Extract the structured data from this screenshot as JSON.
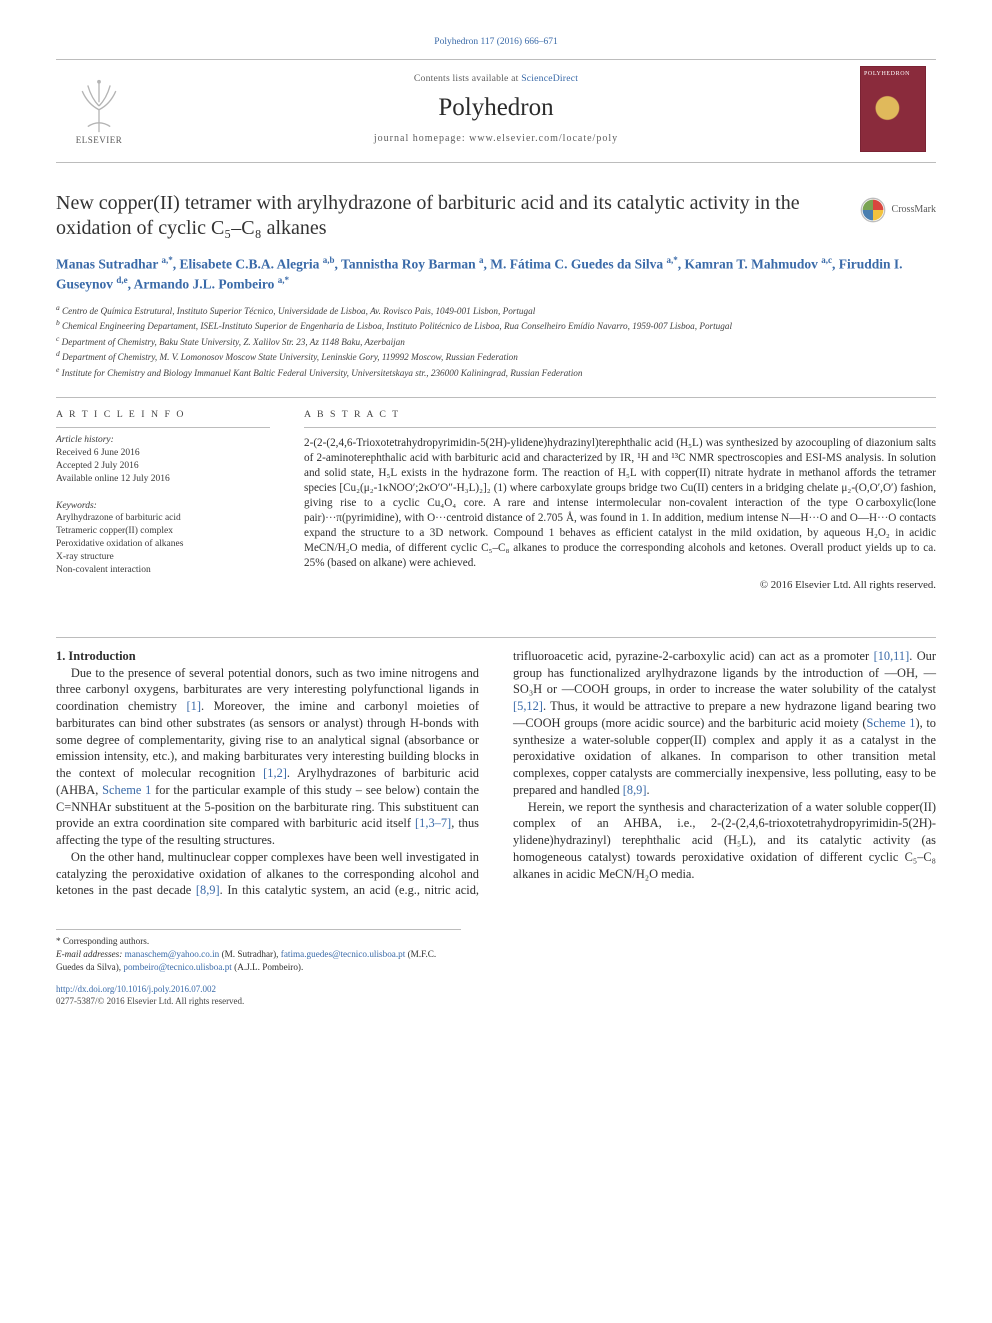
{
  "citation": "Polyhedron 117 (2016) 666–671",
  "header": {
    "contents_prefix": "Contents lists available at ",
    "contents_link": "ScienceDirect",
    "journal": "Polyhedron",
    "homepage_prefix": "journal homepage: ",
    "homepage_url": "www.elsevier.com/locate/poly",
    "publisher": "ELSEVIER",
    "cover_label": "POLYHEDRON"
  },
  "crossmark": "CrossMark",
  "title": "New copper(II) tetramer with arylhydrazone of barbituric acid and its catalytic activity in the oxidation of cyclic C₅–C₈ alkanes",
  "authors_html": "Manas Sutradhar <span class='sup'>a,*</span>, Elisabete C.B.A. Alegria <span class='sup'>a,b</span>, Tannistha Roy Barman <span class='sup'>a</span>, M. Fátima C. Guedes da Silva <span class='sup'>a,*</span>, Kamran T. Mahmudov <span class='sup'>a,c</span>, Firuddin I. Guseynov <span class='sup'>d,e</span>, Armando J.L. Pombeiro <span class='sup'>a,*</span>",
  "affiliations": [
    {
      "tag": "a",
      "text": "Centro de Química Estrutural, Instituto Superior Técnico, Universidade de Lisboa, Av. Rovisco Pais, 1049-001 Lisbon, Portugal"
    },
    {
      "tag": "b",
      "text": "Chemical Engineering Departament, ISEL-Instituto Superior de Engenharia de Lisboa, Instituto Politécnico de Lisboa, Rua Conselheiro Emídio Navarro, 1959-007 Lisboa, Portugal"
    },
    {
      "tag": "c",
      "text": "Department of Chemistry, Baku State University, Z. Xalilov Str. 23, Az 1148 Baku, Azerbaijan"
    },
    {
      "tag": "d",
      "text": "Department of Chemistry, M. V. Lomonosov Moscow State University, Leninskie Gory, 119992 Moscow, Russian Federation"
    },
    {
      "tag": "e",
      "text": "Institute for Chemistry and Biology Immanuel Kant Baltic Federal University, Universitetskaya str., 236000 Kaliningrad, Russian Federation"
    }
  ],
  "info": {
    "heading": "A R T I C L E   I N F O",
    "history_head": "Article history:",
    "history": [
      "Received 6 June 2016",
      "Accepted 2 July 2016",
      "Available online 12 July 2016"
    ],
    "keywords_head": "Keywords:",
    "keywords": [
      "Arylhydrazone of barbituric acid",
      "Tetrameric copper(II) complex",
      "Peroxidative oxidation of alkanes",
      "X-ray structure",
      "Non-covalent interaction"
    ]
  },
  "abstract": {
    "heading": "A B S T R A C T",
    "text": "2-(2-(2,4,6-Trioxotetrahydropyrimidin-5(2H)-ylidene)hydrazinyl)terephthalic acid (H₅L) was synthesized by azocoupling of diazonium salts of 2-aminoterephthalic acid with barbituric acid and characterized by IR, ¹H and ¹³C NMR spectroscopies and ESI-MS analysis. In solution and solid state, H₅L exists in the hydrazone form. The reaction of H₅L with copper(II) nitrate hydrate in methanol affords the tetramer species [Cu₂(μ₂-1κNOO′;2κO′O″-H₃L)₂]₂ (1) where carboxylate groups bridge two Cu(II) centers in a bridging chelate μ₂-(O,O′,O′) fashion, giving rise to a cyclic Cu₄O₄ core. A rare and intense intermolecular non-covalent interaction of the type O carboxylic(lone pair)···π(pyrimidine), with O···centroid distance of 2.705 Å, was found in 1. In addition, medium intense N—H···O and O—H···O contacts expand the structure to a 3D network. Compound 1 behaves as efficient catalyst in the mild oxidation, by aqueous H₂O₂ in acidic MeCN/H₂O media, of different cyclic C₅–C₈ alkanes to produce the corresponding alcohols and ketones. Overall product yields up to ca. 25% (based on alkane) were achieved.",
    "copyright": "© 2016 Elsevier Ltd. All rights reserved."
  },
  "section1": {
    "heading": "1. Introduction",
    "p1_a": "Due to the presence of several potential donors, such as two imine nitrogens and three carbonyl oxygens, barbiturates are very interesting polyfunctional ligands in coordination chemistry ",
    "p1_ref1": "[1]",
    "p1_b": ". Moreover, the imine and carbonyl moieties of barbiturates can bind other substrates (as sensors or analyst) through H-bonds with some degree of complementarity, giving rise to an analytical signal (absorbance or emission intensity, etc.), and making barbiturates very interesting building blocks in the context of molecular recognition ",
    "p1_ref2": "[1,2]",
    "p1_c": ". Arylhydrazones of barbituric acid (AHBA, ",
    "p1_ref3": "Scheme 1",
    "p1_d": " for the particular example of this study – see below) contain the C=NNHAr substituent at the 5-position on the barbiturate ring. This substituent can provide an extra coordination site compared with barbituric acid itself ",
    "p1_ref4": "[1,3–7]",
    "p1_e": ", thus affecting the type of the resulting structures.",
    "p2_a": "On the other hand, multinuclear copper complexes have been well investigated in catalyzing the peroxidative oxidation of alkanes to the corresponding alcohol and ketones in the past decade ",
    "p2_ref1": "[8,9]",
    "p2_b": ". In this catalytic system, an acid (e.g., nitric acid, trifluoroacetic acid, pyrazine-2-carboxylic acid) can act as a promoter ",
    "p2_ref2": "[10,11]",
    "p2_c": ". Our group has functionalized arylhydrazone ligands by the introduction of —OH, —SO₃H or —COOH groups, in order to increase the water solubility of the catalyst ",
    "p2_ref3": "[5,12]",
    "p2_d": ". Thus, it would be attractive to prepare a new hydrazone ligand bearing two —COOH groups (more acidic source) and the barbituric acid moiety (",
    "p2_ref4": "Scheme 1",
    "p2_e": "), to synthesize a water-soluble copper(II) complex and apply it as a catalyst in the peroxidative oxidation of alkanes. In comparison to other transition metal complexes, copper catalysts are commercially inexpensive, less polluting, easy to be prepared and handled ",
    "p2_ref5": "[8,9]",
    "p2_f": ".",
    "p3": "Herein, we report the synthesis and characterization of a water soluble copper(II) complex of an AHBA, i.e., 2-(2-(2,4,6-trioxotetrahydropyrimidin-5(2H)-ylidene)hydrazinyl) terephthalic acid (H₅L), and its catalytic activity (as homogeneous catalyst) towards peroxidative oxidation of different cyclic C₅–C₈ alkanes in acidic MeCN/H₂O media."
  },
  "footnotes": {
    "corr": "* Corresponding authors.",
    "email_label": "E-mail addresses:",
    "emails": [
      {
        "addr": "manaschem@yahoo.co.in",
        "who": "(M. Sutradhar)"
      },
      {
        "addr": "fatima.guedes@tecnico.ulisboa.pt",
        "who": "(M.F.C. Guedes da Silva)"
      },
      {
        "addr": "pombeiro@tecnico.ulisboa.pt",
        "who": "(A.J.L. Pombeiro)"
      }
    ]
  },
  "footer": {
    "doi": "http://dx.doi.org/10.1016/j.poly.2016.07.002",
    "issn_line": "0277-5387/© 2016 Elsevier Ltd. All rights reserved."
  },
  "colors": {
    "link": "#3a6aa8",
    "rule": "#bcbcbc",
    "text": "#2e2e2e",
    "orange": "#e9711c",
    "cover": "#8a2b3c"
  }
}
